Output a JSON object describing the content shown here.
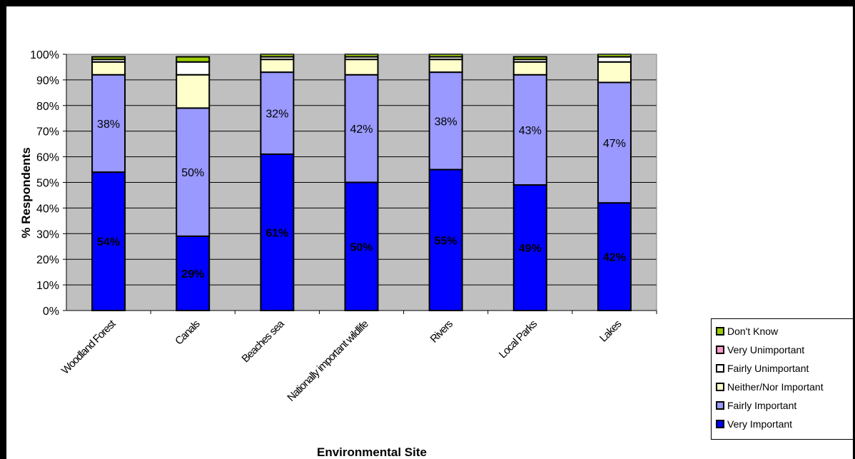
{
  "chart_data": {
    "type": "bar",
    "stacked": true,
    "xlabel": "Environmental Site",
    "ylabel": "% Respondents",
    "ylim": [
      0,
      100
    ],
    "yticks": [
      "0%",
      "10%",
      "20%",
      "30%",
      "40%",
      "50%",
      "60%",
      "70%",
      "80%",
      "90%",
      "100%"
    ],
    "grid": true,
    "legend_position": "bottom-right",
    "categories": [
      "Woodland Forest",
      "Canals",
      "Beaches sea",
      "Nationally important wildlife",
      "Rivers",
      "Local Parks",
      "Lakes"
    ],
    "series": [
      {
        "name": "Very Important",
        "color": "#0000ff",
        "values": [
          54,
          29,
          61,
          50,
          55,
          49,
          42
        ],
        "labels": [
          "54%",
          "29%",
          "61%",
          "50%",
          "55%",
          "49%",
          "42%"
        ]
      },
      {
        "name": "Fairly Important",
        "color": "#9999ff",
        "values": [
          38,
          50,
          32,
          42,
          38,
          43,
          47
        ],
        "labels": [
          "38%",
          "50%",
          "32%",
          "42%",
          "38%",
          "43%",
          "47%"
        ]
      },
      {
        "name": "Neither/Nor Important",
        "color": "#ffffcc",
        "values": [
          5,
          13,
          5,
          6,
          5,
          5,
          8
        ]
      },
      {
        "name": "Fairly Unimportant",
        "color": "#ffffff",
        "values": [
          1,
          5,
          1,
          1,
          1,
          1,
          2
        ]
      },
      {
        "name": "Very Unimportant",
        "color": "#ff99cc",
        "values": [
          0,
          0,
          0,
          0,
          0,
          0,
          0
        ]
      },
      {
        "name": "Don't Know",
        "color": "#99cc00",
        "values": [
          1,
          2,
          1,
          1,
          1,
          1,
          1
        ]
      }
    ],
    "plot_background": "#c0c0c0"
  },
  "legend": {
    "items": [
      {
        "label": "Don't Know",
        "color": "#99cc00"
      },
      {
        "label": "Very Unimportant",
        "color": "#ff99cc"
      },
      {
        "label": "Fairly Unimportant",
        "color": "#ffffff"
      },
      {
        "label": "Neither/Nor Important",
        "color": "#ffffcc"
      },
      {
        "label": "Fairly Important",
        "color": "#9999ff"
      },
      {
        "label": "Very Important",
        "color": "#0000ff"
      }
    ]
  }
}
